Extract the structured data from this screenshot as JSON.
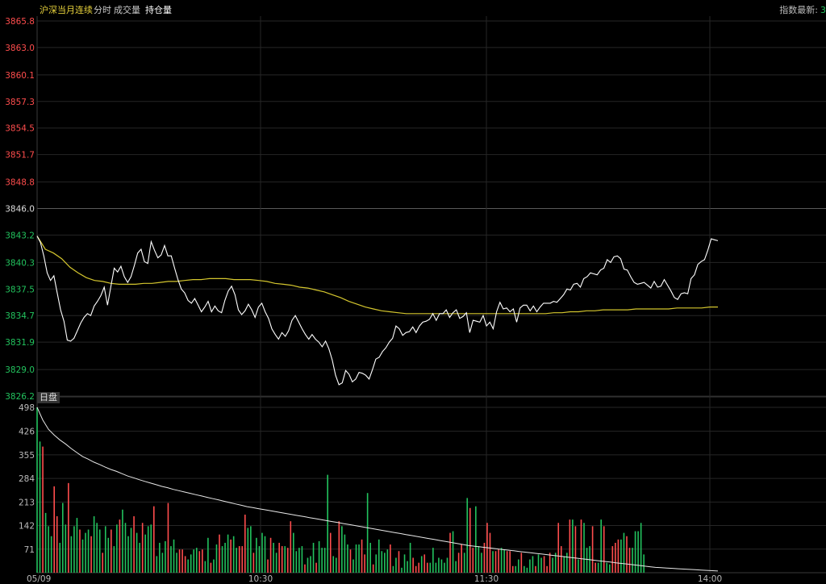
{
  "tabs": [
    {
      "label": "沪深当月连续"
    },
    {
      "label": "分时"
    },
    {
      "label": "成交量"
    },
    {
      "label": "持仓量"
    }
  ],
  "index_info": {
    "label": "指数最新:",
    "value": "3"
  },
  "session_tag": "日盘",
  "colors": {
    "up": "#ff4d4d",
    "down": "#22c35e",
    "price": "#ffffff",
    "avg": "#d4c62e",
    "grid": "#262626",
    "ref": "#5a5a5a"
  },
  "chart_data": [
    {
      "type": "line",
      "panel": "price",
      "y_ticks": [
        "3865.8",
        "3863.0",
        "3860.1",
        "3857.3",
        "3854.5",
        "3851.7",
        "3848.8",
        "3846.0",
        "3843.2",
        "3840.3",
        "3837.5",
        "3834.7",
        "3831.9",
        "3829.0",
        "3826.2"
      ],
      "ylim": [
        3826.2,
        3865.8
      ],
      "reference_price": 3846.0,
      "x_ticks": [
        "05/09",
        "10:30",
        "11:30",
        "14:00"
      ],
      "series": [
        {
          "values": [
            3843.1,
            3842.4,
            3841.0,
            3839.2,
            3838.4,
            3838.9,
            3837.1,
            3835.3,
            3834.1,
            3832.1,
            3832.0,
            3832.3,
            3833.1,
            3833.9,
            3834.5,
            3834.9,
            3834.7,
            3835.7,
            3836.2,
            3836.8,
            3837.7,
            3835.8,
            3837.8,
            3839.7,
            3839.3,
            3839.9,
            3838.8,
            3838.2,
            3838.8,
            3840.0,
            3841.3,
            3841.7,
            3840.4,
            3840.2,
            3842.5,
            3841.6,
            3840.8,
            3841.1,
            3842.1,
            3841.0,
            3841.0,
            3839.7,
            3838.5,
            3837.5,
            3837.1,
            3836.3,
            3836.0,
            3836.5,
            3835.8,
            3835.1,
            3835.6,
            3836.2,
            3835.1,
            3835.7,
            3835.2,
            3835.0,
            3836.3,
            3837.3,
            3837.8,
            3836.9,
            3835.3,
            3834.8,
            3835.2,
            3835.9,
            3835.3,
            3834.5,
            3835.6,
            3836.0,
            3835.1,
            3834.4,
            3833.3,
            3832.7,
            3832.2,
            3832.9,
            3832.5,
            3833.1,
            3834.2,
            3834.7,
            3834.0,
            3833.3,
            3832.7,
            3832.2,
            3832.7,
            3832.2,
            3831.9,
            3831.4,
            3832.0,
            3831.2,
            3830.0,
            3828.4,
            3827.4,
            3827.6,
            3828.9,
            3828.5,
            3827.7,
            3828.0,
            3828.7,
            3828.6,
            3828.4,
            3828.0,
            3829.0,
            3830.1,
            3830.3,
            3830.9,
            3831.3,
            3831.9,
            3832.3,
            3833.6,
            3833.3,
            3832.6,
            3832.9,
            3833.0,
            3833.5,
            3832.9,
            3833.6,
            3834.0,
            3834.1,
            3834.3,
            3834.9,
            3834.2,
            3834.9,
            3834.9,
            3835.3,
            3834.5,
            3835.0,
            3835.3,
            3834.4,
            3834.6,
            3835.0,
            3832.9,
            3834.2,
            3834.1,
            3834.0,
            3834.7,
            3833.6,
            3834.0,
            3833.3,
            3835.1,
            3836.1,
            3835.4,
            3835.5,
            3835.1,
            3835.4,
            3834.0,
            3835.5,
            3835.8,
            3835.8,
            3835.2,
            3835.7,
            3835.1,
            3835.6,
            3836.0,
            3836.0,
            3836.0,
            3836.2,
            3836.1,
            3836.5,
            3836.9,
            3837.5,
            3837.4,
            3838.0,
            3838.1,
            3837.7,
            3838.6,
            3838.8,
            3839.2,
            3839.1,
            3839.0,
            3839.5,
            3839.7,
            3840.6,
            3840.3,
            3840.9,
            3841.0,
            3840.7,
            3839.6,
            3839.5,
            3838.8,
            3838.2,
            3838.0,
            3838.1,
            3838.2,
            3837.9,
            3837.6,
            3838.3,
            3837.7,
            3837.8,
            3838.5,
            3837.9,
            3837.3,
            3836.6,
            3836.4,
            3837.0,
            3837.1,
            3837.0,
            3838.6,
            3839.0,
            3840.1,
            3840.4,
            3840.6,
            3841.6,
            3842.8,
            3842.7,
            3842.6
          ]
        },
        {
          "values": [
            3843.1,
            3841.7,
            3841.3,
            3840.7,
            3839.8,
            3839.2,
            3838.7,
            3838.4,
            3838.3,
            3838.1,
            3838.0,
            3838.0,
            3838.0,
            3838.1,
            3838.1,
            3838.2,
            3838.3,
            3838.3,
            3838.4,
            3838.5,
            3838.5,
            3838.6,
            3838.6,
            3838.6,
            3838.5,
            3838.5,
            3838.5,
            3838.4,
            3838.3,
            3838.1,
            3838.0,
            3837.9,
            3837.7,
            3837.6,
            3837.4,
            3837.2,
            3836.9,
            3836.6,
            3836.2,
            3835.9,
            3835.6,
            3835.4,
            3835.2,
            3835.1,
            3835.0,
            3834.9,
            3834.9,
            3834.9,
            3834.9,
            3834.9,
            3834.9,
            3834.9,
            3834.9,
            3834.9,
            3834.9,
            3834.9,
            3834.9,
            3834.9,
            3834.9,
            3834.9,
            3834.9,
            3834.9,
            3834.9,
            3835.0,
            3835.0,
            3835.1,
            3835.1,
            3835.2,
            3835.2,
            3835.3,
            3835.3,
            3835.3,
            3835.3,
            3835.4,
            3835.4,
            3835.4,
            3835.4,
            3835.4,
            3835.5,
            3835.5,
            3835.5,
            3835.5,
            3835.6,
            3835.6
          ]
        }
      ]
    },
    {
      "type": "bar",
      "panel": "volume",
      "y_ticks": [
        "498",
        "426",
        "355",
        "284",
        "213",
        "142",
        "71"
      ],
      "ylim": [
        0,
        498
      ],
      "x_ticks": [
        "05/09",
        "10:30",
        "11:30",
        "14:00"
      ],
      "values": [
        498,
        395,
        380,
        180,
        140,
        110,
        260,
        170,
        90,
        210,
        145,
        270,
        110,
        140,
        165,
        130,
        100,
        120,
        130,
        110,
        170,
        150,
        130,
        60,
        140,
        105,
        130,
        80,
        145,
        160,
        190,
        150,
        110,
        135,
        170,
        120,
        90,
        150,
        115,
        140,
        145,
        200,
        50,
        90,
        60,
        95,
        210,
        80,
        100,
        60,
        70,
        70,
        50,
        40,
        55,
        70,
        75,
        65,
        70,
        35,
        105,
        30,
        40,
        85,
        115,
        80,
        90,
        115,
        100,
        110,
        75,
        80,
        80,
        175,
        135,
        140,
        60,
        105,
        80,
        120,
        110,
        40,
        105,
        90,
        60,
        90,
        80,
        80,
        75,
        155,
        120,
        65,
        75,
        80,
        25,
        45,
        50,
        90,
        30,
        95,
        75,
        75,
        295,
        120,
        50,
        45,
        155,
        140,
        115,
        85,
        70,
        40,
        85,
        85,
        100,
        55,
        240,
        90,
        25,
        55,
        100,
        65,
        60,
        70,
        85,
        20,
        45,
        65,
        15,
        55,
        35,
        90,
        45,
        20,
        30,
        50,
        55,
        30,
        30,
        75,
        30,
        45,
        40,
        30,
        45,
        120,
        125,
        35,
        60,
        85,
        60,
        225,
        195,
        75,
        200,
        80,
        60,
        90,
        150,
        120,
        65,
        65,
        70,
        75,
        70,
        65,
        65,
        20,
        20,
        40,
        60,
        20,
        15,
        40,
        50,
        20,
        55,
        45,
        50,
        20,
        60,
        45,
        60,
        150,
        80,
        50,
        60,
        160,
        160,
        140,
        40,
        160,
        150,
        75,
        80,
        140,
        30,
        30,
        160,
        140,
        30,
        25,
        80,
        90,
        100,
        100,
        120,
        110,
        75,
        75,
        125,
        125,
        150,
        55
      ],
      "colors_seq": "dduddduudddudddudddudddudduddudddduddudddudddduddduuudddduudduddudddudduuuddudddduudduuduudddduddduddddudduddduddduudduddddduddudddduuuduudddddddudduudduuddduuuduudduuudduddddudduuudduuddudududdduuddudduuudduuddd",
      "series": [
        {
          "values": [
            498,
            460,
            432,
            415,
            400,
            388,
            374,
            362,
            350,
            342,
            333,
            326,
            318,
            311,
            305,
            298,
            291,
            286,
            280,
            275,
            270,
            265,
            260,
            256,
            251,
            247,
            243,
            239,
            235,
            231,
            227,
            223,
            219,
            215,
            211,
            207,
            203,
            199,
            196,
            193,
            190,
            187,
            184,
            181,
            178,
            175,
            172,
            169,
            166,
            163,
            160,
            157,
            154,
            151,
            148,
            145,
            142,
            139,
            136,
            133,
            130,
            127,
            124,
            121,
            118,
            115,
            112,
            109,
            106,
            103,
            100,
            97,
            94,
            91,
            88,
            85,
            82,
            80,
            78,
            76,
            74,
            72,
            70,
            68,
            66,
            64,
            62,
            60,
            58,
            56,
            54,
            52,
            50,
            48,
            46,
            44,
            42,
            40,
            38,
            36,
            34,
            32,
            30,
            28,
            26,
            24,
            22,
            20,
            18,
            16,
            15,
            14,
            13,
            12,
            11,
            10,
            9,
            8,
            7,
            6,
            5
          ]
        }
      ]
    }
  ]
}
